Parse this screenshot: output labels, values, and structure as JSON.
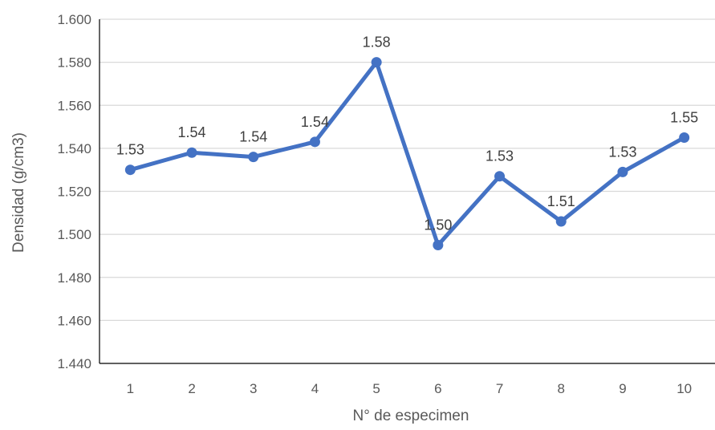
{
  "chart_data": {
    "type": "line",
    "title": "",
    "xlabel": "N° de especimen",
    "ylabel": "Densidad (g/cm3)",
    "categories": [
      "1",
      "2",
      "3",
      "4",
      "5",
      "6",
      "7",
      "8",
      "9",
      "10"
    ],
    "series": [
      {
        "values": [
          1.53,
          1.538,
          1.536,
          1.543,
          1.58,
          1.495,
          1.527,
          1.506,
          1.529,
          1.545
        ],
        "data_labels": [
          "1.53",
          "1.54",
          "1.54",
          "1.54",
          "1.58",
          "1.50",
          "1.53",
          "1.51",
          "1.53",
          "1.55"
        ],
        "color": "#4472C4"
      }
    ],
    "ylim": [
      1.44,
      1.6
    ],
    "yticks": [
      "1.440",
      "1.460",
      "1.480",
      "1.500",
      "1.520",
      "1.540",
      "1.560",
      "1.580",
      "1.600"
    ],
    "grid": true,
    "legend": "none",
    "gridline_color": "#D9D9D9"
  }
}
